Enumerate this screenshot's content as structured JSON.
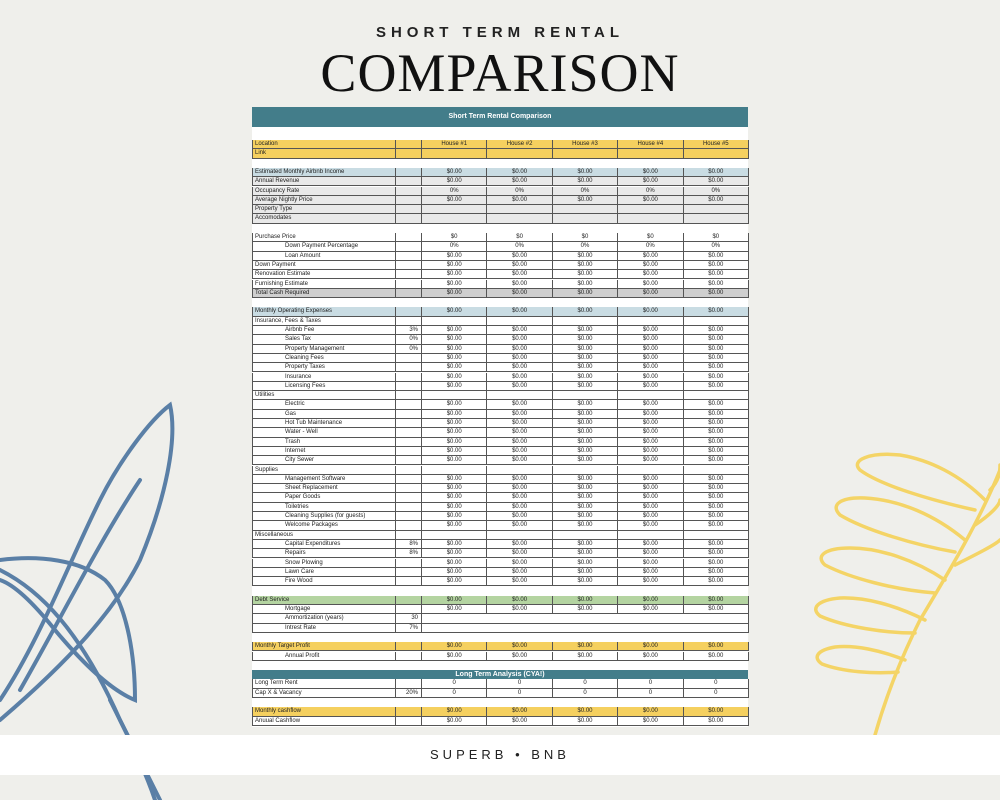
{
  "header": {
    "subtitle": "SHORT TERM RENTAL",
    "title": "COMPARISON"
  },
  "footer": {
    "brand": "SUPERB • BNB"
  },
  "sheet": {
    "title": "Short Term Rental Comparison",
    "long_term_title": "Long Term Analysis (CYA!)",
    "houses": [
      "House #1",
      "House #2",
      "House #3",
      "House #4",
      "House #5"
    ],
    "rows": [
      {
        "label": "Location",
        "style": "yellow",
        "values": [
          "House #1",
          "House #2",
          "House #3",
          "House #4",
          "House #5"
        ]
      },
      {
        "label": "Link",
        "style": "yellow",
        "values": [
          "",
          "",
          "",
          "",
          ""
        ]
      },
      {
        "spacer": true
      },
      {
        "label": "Estimated Monthly Airbnb Income",
        "style": "blue",
        "values": [
          "$0.00",
          "$0.00",
          "$0.00",
          "$0.00",
          "$0.00"
        ]
      },
      {
        "label": "Annual Revenue",
        "style": "gray",
        "values": [
          "$0.00",
          "$0.00",
          "$0.00",
          "$0.00",
          "$0.00"
        ]
      },
      {
        "label": "Occupancy Rate",
        "style": "gray",
        "values": [
          "0%",
          "0%",
          "0%",
          "0%",
          "0%"
        ]
      },
      {
        "label": "Average Nightly Price",
        "style": "gray",
        "values": [
          "$0.00",
          "$0.00",
          "$0.00",
          "$0.00",
          "$0.00"
        ]
      },
      {
        "label": "Property Type",
        "style": "gray",
        "values": [
          "",
          "",
          "",
          "",
          ""
        ]
      },
      {
        "label": "Accomodates",
        "style": "gray",
        "values": [
          "",
          "",
          "",
          "",
          ""
        ]
      },
      {
        "spacer": true
      },
      {
        "label": "Purchase Price",
        "values": [
          "$0",
          "$0",
          "$0",
          "$0",
          "$0"
        ]
      },
      {
        "label": "Down Payment Percentage",
        "indent": true,
        "values": [
          "0%",
          "0%",
          "0%",
          "0%",
          "0%"
        ]
      },
      {
        "label": "Loan Amount",
        "indent": true,
        "values": [
          "$0.00",
          "$0.00",
          "$0.00",
          "$0.00",
          "$0.00"
        ]
      },
      {
        "label": "Down Payment",
        "values": [
          "$0.00",
          "$0.00",
          "$0.00",
          "$0.00",
          "$0.00"
        ]
      },
      {
        "label": "Renovation Estimate",
        "values": [
          "$0.00",
          "$0.00",
          "$0.00",
          "$0.00",
          "$0.00"
        ]
      },
      {
        "label": "Furnishing Estimate",
        "values": [
          "$0.00",
          "$0.00",
          "$0.00",
          "$0.00",
          "$0.00"
        ]
      },
      {
        "label": "Total Cash Required",
        "style": "darkgray",
        "values": [
          "$0.00",
          "$0.00",
          "$0.00",
          "$0.00",
          "$0.00"
        ]
      },
      {
        "spacer": true
      },
      {
        "label": "Monthly Operating Expenses",
        "style": "blue",
        "values": [
          "$0.00",
          "$0.00",
          "$0.00",
          "$0.00",
          "$0.00"
        ]
      },
      {
        "label": "Insurance, Fees & Taxes",
        "values": [
          "",
          "",
          "",
          "",
          ""
        ]
      },
      {
        "label": "Airbnb Fee",
        "indent": true,
        "pct": "3%",
        "values": [
          "$0.00",
          "$0.00",
          "$0.00",
          "$0.00",
          "$0.00"
        ]
      },
      {
        "label": "Sales Tax",
        "indent": true,
        "pct": "0%",
        "values": [
          "$0.00",
          "$0.00",
          "$0.00",
          "$0.00",
          "$0.00"
        ]
      },
      {
        "label": "Property Management",
        "indent": true,
        "pct": "0%",
        "values": [
          "$0.00",
          "$0.00",
          "$0.00",
          "$0.00",
          "$0.00"
        ]
      },
      {
        "label": "Cleaning Fees",
        "indent": true,
        "values": [
          "$0.00",
          "$0.00",
          "$0.00",
          "$0.00",
          "$0.00"
        ]
      },
      {
        "label": "Property Taxes",
        "indent": true,
        "values": [
          "$0.00",
          "$0.00",
          "$0.00",
          "$0.00",
          "$0.00"
        ]
      },
      {
        "label": "Insurance",
        "indent": true,
        "values": [
          "$0.00",
          "$0.00",
          "$0.00",
          "$0.00",
          "$0.00"
        ]
      },
      {
        "label": "Licensing Fees",
        "indent": true,
        "values": [
          "$0.00",
          "$0.00",
          "$0.00",
          "$0.00",
          "$0.00"
        ]
      },
      {
        "label": "Utilities",
        "values": [
          "",
          "",
          "",
          "",
          ""
        ]
      },
      {
        "label": "Electric",
        "indent": true,
        "values": [
          "$0.00",
          "$0.00",
          "$0.00",
          "$0.00",
          "$0.00"
        ]
      },
      {
        "label": "Gas",
        "indent": true,
        "values": [
          "$0.00",
          "$0.00",
          "$0.00",
          "$0.00",
          "$0.00"
        ]
      },
      {
        "label": "Hot Tub Maintenance",
        "indent": true,
        "values": [
          "$0.00",
          "$0.00",
          "$0.00",
          "$0.00",
          "$0.00"
        ]
      },
      {
        "label": "Water - Well",
        "indent": true,
        "values": [
          "$0.00",
          "$0.00",
          "$0.00",
          "$0.00",
          "$0.00"
        ]
      },
      {
        "label": "Trash",
        "indent": true,
        "values": [
          "$0.00",
          "$0.00",
          "$0.00",
          "$0.00",
          "$0.00"
        ]
      },
      {
        "label": "Internet",
        "indent": true,
        "values": [
          "$0.00",
          "$0.00",
          "$0.00",
          "$0.00",
          "$0.00"
        ]
      },
      {
        "label": "City Sewer",
        "indent": true,
        "values": [
          "$0.00",
          "$0.00",
          "$0.00",
          "$0.00",
          "$0.00"
        ]
      },
      {
        "label": "Supplies",
        "values": [
          "",
          "",
          "",
          "",
          ""
        ]
      },
      {
        "label": "Management Software",
        "indent": true,
        "values": [
          "$0.00",
          "$0.00",
          "$0.00",
          "$0.00",
          "$0.00"
        ]
      },
      {
        "label": "Sheet Replacement",
        "indent": true,
        "values": [
          "$0.00",
          "$0.00",
          "$0.00",
          "$0.00",
          "$0.00"
        ]
      },
      {
        "label": "Paper Goods",
        "indent": true,
        "values": [
          "$0.00",
          "$0.00",
          "$0.00",
          "$0.00",
          "$0.00"
        ]
      },
      {
        "label": "Toiletries",
        "indent": true,
        "values": [
          "$0.00",
          "$0.00",
          "$0.00",
          "$0.00",
          "$0.00"
        ]
      },
      {
        "label": "Cleaning Supplies (for guests)",
        "indent": true,
        "values": [
          "$0.00",
          "$0.00",
          "$0.00",
          "$0.00",
          "$0.00"
        ]
      },
      {
        "label": "Welcome Packages",
        "indent": true,
        "values": [
          "$0.00",
          "$0.00",
          "$0.00",
          "$0.00",
          "$0.00"
        ]
      },
      {
        "label": "Miscellaneous",
        "values": [
          "",
          "",
          "",
          "",
          ""
        ]
      },
      {
        "label": "Capital Expenditures",
        "indent": true,
        "pct": "8%",
        "values": [
          "$0.00",
          "$0.00",
          "$0.00",
          "$0.00",
          "$0.00"
        ]
      },
      {
        "label": "Repairs",
        "indent": true,
        "pct": "8%",
        "values": [
          "$0.00",
          "$0.00",
          "$0.00",
          "$0.00",
          "$0.00"
        ]
      },
      {
        "label": "Snow Plowing",
        "indent": true,
        "values": [
          "$0.00",
          "$0.00",
          "$0.00",
          "$0.00",
          "$0.00"
        ]
      },
      {
        "label": "Lawn Care",
        "indent": true,
        "values": [
          "$0.00",
          "$0.00",
          "$0.00",
          "$0.00",
          "$0.00"
        ]
      },
      {
        "label": "Fire Wood",
        "indent": true,
        "values": [
          "$0.00",
          "$0.00",
          "$0.00",
          "$0.00",
          "$0.00"
        ]
      },
      {
        "spacer": true
      },
      {
        "label": "Debt Service",
        "style": "green",
        "values": [
          "$0.00",
          "$0.00",
          "$0.00",
          "$0.00",
          "$0.00"
        ]
      },
      {
        "label": "Mortgage",
        "indent": true,
        "values": [
          "$0.00",
          "$0.00",
          "$0.00",
          "$0.00",
          "$0.00"
        ]
      },
      {
        "label": "Ammortization (years)",
        "indent": true,
        "pct": "30",
        "novalues": true
      },
      {
        "label": "Intrest Rate",
        "indent": true,
        "pct": "7%",
        "novalues": true
      },
      {
        "spacer": true
      },
      {
        "label": "Monthly Target Profit",
        "style": "yellow",
        "values": [
          "$0.00",
          "$0.00",
          "$0.00",
          "$0.00",
          "$0.00"
        ]
      },
      {
        "label": "Annual Profit",
        "indent": true,
        "values": [
          "$0.00",
          "$0.00",
          "$0.00",
          "$0.00",
          "$0.00"
        ]
      },
      {
        "spacer": true
      },
      {
        "band": "long_term_title"
      },
      {
        "label": "Long Term Rent",
        "values": [
          "0",
          "0",
          "0",
          "0",
          "0"
        ]
      },
      {
        "label": "Cap X & Vacancy",
        "pct": "20%",
        "values": [
          "0",
          "0",
          "0",
          "0",
          "0"
        ]
      },
      {
        "spacer": true
      },
      {
        "label": "Monthly cashflow",
        "style": "yellow",
        "values": [
          "$0.00",
          "$0.00",
          "$0.00",
          "$0.00",
          "$0.00"
        ]
      },
      {
        "label": "Anuual Cashflow",
        "values": [
          "$0.00",
          "$0.00",
          "$0.00",
          "$0.00",
          "$0.00"
        ]
      }
    ]
  },
  "colors": {
    "teal": "#437d8a",
    "yellow": "#f5d05f",
    "blue": "#c9dce3",
    "gray": "#e9e9e9",
    "darkgray": "#cfcfcf",
    "green": "#b4d4a1",
    "leaf_blue": "#5a7fa6",
    "leaf_yellow": "#f4d466"
  }
}
